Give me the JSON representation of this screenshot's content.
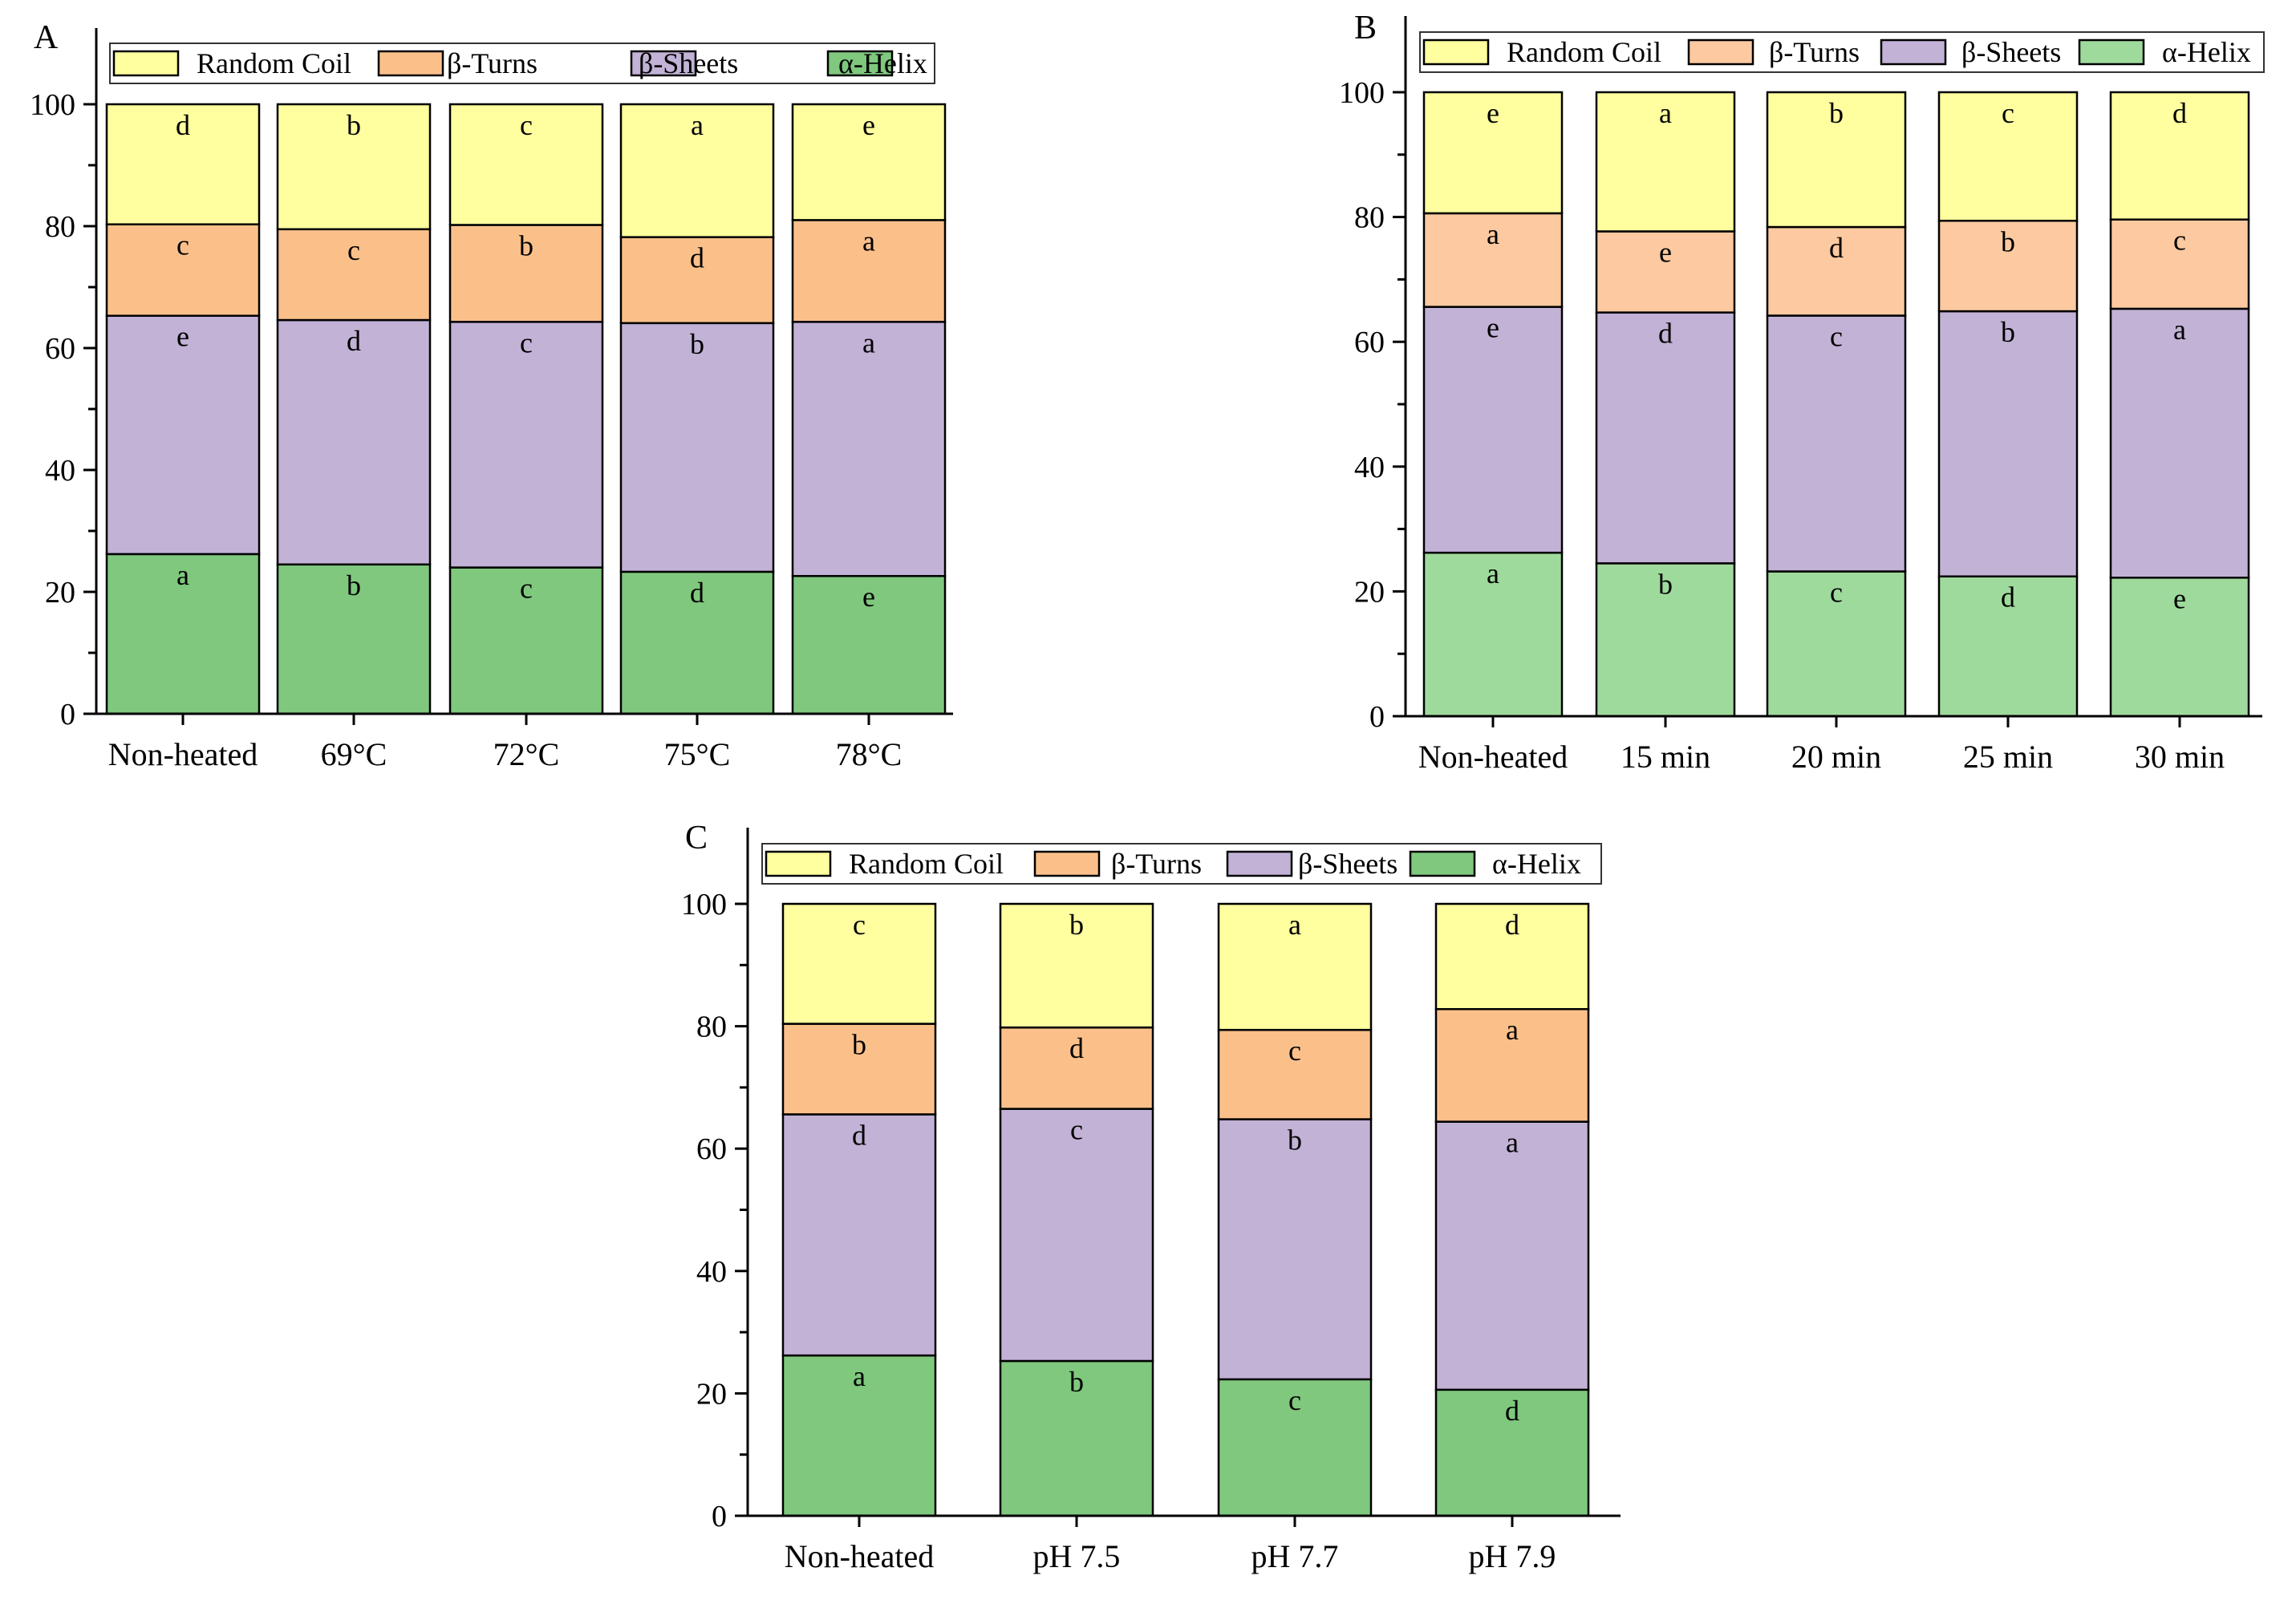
{
  "colors": {
    "random_coil": "#FFFFA0",
    "beta_turns": "#FBC08A",
    "beta_turns_b": "#FCC9A0",
    "beta_sheets": "#C2B2D6",
    "alpha_helix": "#7FC87E",
    "alpha_helix_b": "#9FDA9D",
    "axis": "#000000"
  },
  "chart_data": [
    {
      "type": "bar",
      "stacked": true,
      "panel": "A",
      "title": "",
      "xlabel": "",
      "ylabel": "",
      "ylim": [
        0,
        100
      ],
      "y_ticks": [
        "0",
        "20",
        "40",
        "60",
        "80",
        "100"
      ],
      "grid": false,
      "legend_position": "top",
      "categories": [
        "Non-heated",
        "69°C",
        "72°C",
        "75°C",
        "78°C"
      ],
      "series": [
        {
          "name": "α-Helix",
          "values": [
            26.2,
            24.5,
            24.0,
            23.3,
            22.6
          ],
          "letters": [
            "a",
            "b",
            "c",
            "d",
            "e"
          ]
        },
        {
          "name": "β-Sheets",
          "values": [
            39.1,
            40.1,
            40.3,
            40.8,
            41.7
          ],
          "letters": [
            "e",
            "d",
            "c",
            "b",
            "a"
          ]
        },
        {
          "name": "β-Turns",
          "values": [
            15.0,
            14.9,
            15.9,
            14.1,
            16.7
          ],
          "letters": [
            "c",
            "c",
            "b",
            "d",
            "a"
          ]
        },
        {
          "name": "Random Coil",
          "values": [
            19.7,
            20.5,
            19.8,
            21.8,
            19.0
          ],
          "letters": [
            "d",
            "b",
            "c",
            "a",
            "e"
          ]
        }
      ],
      "legend": [
        "Random Coil",
        "β-Turns",
        "β-Sheets",
        "α-Helix"
      ]
    },
    {
      "type": "bar",
      "stacked": true,
      "panel": "B",
      "title": "",
      "xlabel": "",
      "ylabel": "",
      "ylim": [
        0,
        100
      ],
      "y_ticks": [
        "0",
        "20",
        "40",
        "60",
        "80",
        "100"
      ],
      "grid": false,
      "legend_position": "top",
      "categories": [
        "Non-heated",
        "15 min",
        "20 min",
        "25 min",
        "30 min"
      ],
      "series": [
        {
          "name": "α-Helix",
          "values": [
            26.2,
            24.5,
            23.2,
            22.4,
            22.2
          ],
          "letters": [
            "a",
            "b",
            "c",
            "d",
            "e"
          ]
        },
        {
          "name": "β-Sheets",
          "values": [
            39.4,
            40.2,
            41.0,
            42.5,
            43.1
          ],
          "letters": [
            "e",
            "d",
            "c",
            "b",
            "a"
          ]
        },
        {
          "name": "β-Turns",
          "values": [
            15.0,
            13.0,
            14.2,
            14.5,
            14.3
          ],
          "letters": [
            "a",
            "e",
            "d",
            "b",
            "c"
          ]
        },
        {
          "name": "Random Coil",
          "values": [
            19.4,
            22.3,
            21.6,
            20.6,
            20.4
          ],
          "letters": [
            "e",
            "a",
            "b",
            "c",
            "d"
          ]
        }
      ],
      "legend": [
        "Random Coil",
        "β-Turns",
        "β-Sheets",
        "α-Helix"
      ]
    },
    {
      "type": "bar",
      "stacked": true,
      "panel": "C",
      "title": "",
      "xlabel": "",
      "ylabel": "",
      "ylim": [
        0,
        100
      ],
      "y_ticks": [
        "0",
        "20",
        "40",
        "60",
        "80",
        "100"
      ],
      "grid": false,
      "legend_position": "top",
      "categories": [
        "Non-heated",
        "pH 7.5",
        "pH 7.7",
        "pH 7.9"
      ],
      "series": [
        {
          "name": "α-Helix",
          "values": [
            26.2,
            25.3,
            22.3,
            20.6
          ],
          "letters": [
            "a",
            "b",
            "c",
            "d"
          ]
        },
        {
          "name": "β-Sheets",
          "values": [
            39.4,
            41.2,
            42.5,
            43.8
          ],
          "letters": [
            "d",
            "c",
            "b",
            "a"
          ]
        },
        {
          "name": "β-Turns",
          "values": [
            14.8,
            13.3,
            14.6,
            18.4
          ],
          "letters": [
            "b",
            "d",
            "c",
            "a"
          ]
        },
        {
          "name": "Random Coil",
          "values": [
            19.6,
            20.2,
            20.6,
            17.2
          ],
          "letters": [
            "c",
            "b",
            "a",
            "d"
          ]
        }
      ],
      "legend": [
        "Random Coil",
        "β-Turns",
        "β-Sheets",
        "α-Helix"
      ]
    }
  ]
}
